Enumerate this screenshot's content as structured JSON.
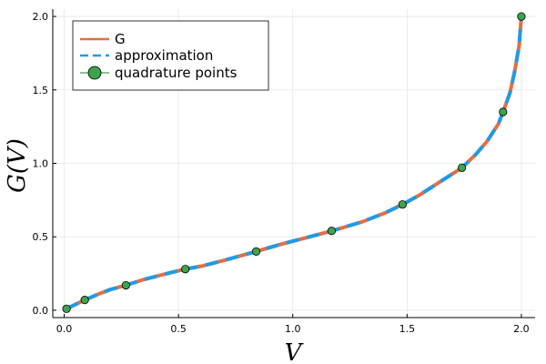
{
  "chart_data": {
    "type": "line",
    "xlabel": "V",
    "ylabel": "G(V)",
    "xlim": [
      -0.05,
      2.06
    ],
    "ylim": [
      -0.05,
      2.05
    ],
    "xticks": [
      0.0,
      0.5,
      1.0,
      1.5,
      2.0
    ],
    "yticks": [
      0.0,
      0.5,
      1.0,
      1.5,
      2.0
    ],
    "xtick_labels": [
      "0.0",
      "0.5",
      "1.0",
      "1.5",
      "2.0"
    ],
    "ytick_labels": [
      "0.0",
      "0.5",
      "1.0",
      "1.5",
      "2.0"
    ],
    "grid": true,
    "legend_position": "top-left",
    "series": [
      {
        "name": "G",
        "style": "solid",
        "color": "#e26f46",
        "x": [
          0.01,
          0.05,
          0.09,
          0.15,
          0.2,
          0.27,
          0.35,
          0.45,
          0.53,
          0.6,
          0.7,
          0.84,
          0.95,
          1.05,
          1.17,
          1.3,
          1.4,
          1.48,
          1.55,
          1.63,
          1.7,
          1.74,
          1.8,
          1.85,
          1.9,
          1.92,
          1.95,
          1.97,
          1.99,
          2.0
        ],
        "y": [
          0.01,
          0.04,
          0.07,
          0.11,
          0.14,
          0.17,
          0.21,
          0.25,
          0.28,
          0.3,
          0.34,
          0.4,
          0.45,
          0.49,
          0.54,
          0.6,
          0.66,
          0.72,
          0.78,
          0.86,
          0.93,
          0.97,
          1.06,
          1.15,
          1.27,
          1.35,
          1.48,
          1.62,
          1.8,
          2.0
        ]
      },
      {
        "name": "approximation",
        "style": "dashed",
        "color": "#1f9be6",
        "x": [
          0.01,
          0.05,
          0.09,
          0.15,
          0.2,
          0.27,
          0.35,
          0.45,
          0.53,
          0.6,
          0.7,
          0.84,
          0.95,
          1.05,
          1.17,
          1.3,
          1.4,
          1.48,
          1.55,
          1.63,
          1.7,
          1.74,
          1.8,
          1.85,
          1.9,
          1.92,
          1.95,
          1.97,
          1.99,
          2.0
        ],
        "y": [
          0.01,
          0.04,
          0.07,
          0.11,
          0.14,
          0.17,
          0.21,
          0.25,
          0.28,
          0.3,
          0.34,
          0.4,
          0.45,
          0.49,
          0.54,
          0.6,
          0.66,
          0.72,
          0.78,
          0.86,
          0.93,
          0.97,
          1.06,
          1.15,
          1.27,
          1.35,
          1.48,
          1.62,
          1.8,
          2.0
        ]
      },
      {
        "name": "quadrature points",
        "style": "markers",
        "color": "#3da44d",
        "x": [
          0.01,
          0.09,
          0.27,
          0.53,
          0.84,
          1.17,
          1.48,
          1.74,
          1.92,
          2.0
        ],
        "y": [
          0.01,
          0.07,
          0.17,
          0.28,
          0.4,
          0.54,
          0.72,
          0.97,
          1.35,
          2.0
        ]
      }
    ]
  }
}
